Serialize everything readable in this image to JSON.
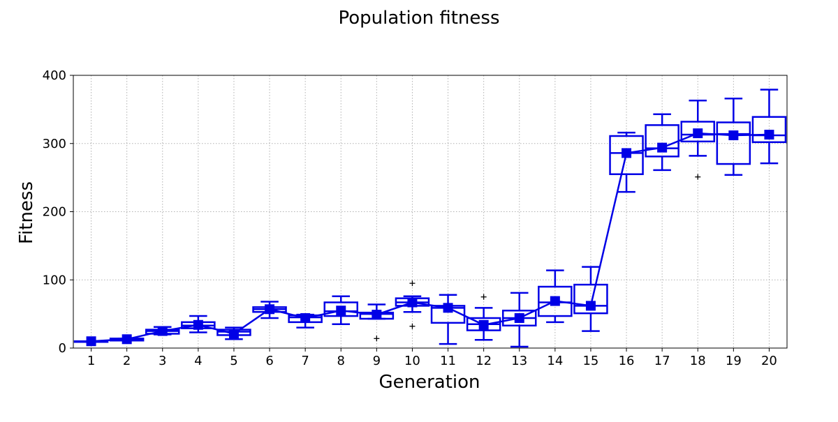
{
  "chart_data": {
    "type": "box",
    "title": "Population fitness",
    "xlabel": "Generation",
    "ylabel": "Fitness",
    "ylim": [
      0,
      400
    ],
    "yticks": [
      0,
      100,
      200,
      300,
      400
    ],
    "grid": true,
    "categories": [
      "1",
      "2",
      "3",
      "4",
      "5",
      "6",
      "7",
      "8",
      "9",
      "10",
      "11",
      "12",
      "13",
      "14",
      "15",
      "16",
      "17",
      "18",
      "19",
      "20"
    ],
    "color": "#0000e6",
    "boxes": [
      {
        "q1": 9,
        "median": 10,
        "q3": 10,
        "wlo": 9,
        "whi": 10,
        "mean": 10,
        "fliers": []
      },
      {
        "q1": 11,
        "median": 12,
        "q3": 14,
        "wlo": 11,
        "whi": 14,
        "mean": 13,
        "fliers": []
      },
      {
        "q1": 21,
        "median": 25,
        "q3": 27,
        "wlo": 20,
        "whi": 31,
        "mean": 25,
        "fliers": []
      },
      {
        "q1": 29,
        "median": 33,
        "q3": 38,
        "wlo": 23,
        "whi": 47,
        "mean": 34,
        "fliers": []
      },
      {
        "q1": 19,
        "median": 24,
        "q3": 27,
        "wlo": 13,
        "whi": 30,
        "mean": 21,
        "fliers": []
      },
      {
        "q1": 53,
        "median": 57,
        "q3": 60,
        "wlo": 44,
        "whi": 68,
        "mean": 57,
        "fliers": []
      },
      {
        "q1": 38,
        "median": 45,
        "q3": 48,
        "wlo": 30,
        "whi": 49,
        "mean": 44,
        "fliers": []
      },
      {
        "q1": 47,
        "median": 54,
        "q3": 67,
        "wlo": 35,
        "whi": 76,
        "mean": 55,
        "fliers": []
      },
      {
        "q1": 43,
        "median": 50,
        "q3": 52,
        "wlo": 43,
        "whi": 64,
        "mean": 49,
        "fliers": [
          14
        ]
      },
      {
        "q1": 62,
        "median": 67,
        "q3": 73,
        "wlo": 53,
        "whi": 76,
        "mean": 67,
        "fliers": [
          32,
          95
        ]
      },
      {
        "q1": 37,
        "median": 59,
        "q3": 62,
        "wlo": 6,
        "whi": 78,
        "mean": 59,
        "fliers": []
      },
      {
        "q1": 26,
        "median": 35,
        "q3": 44,
        "wlo": 12,
        "whi": 59,
        "mean": 34,
        "fliers": [
          75
        ]
      },
      {
        "q1": 33,
        "median": 44,
        "q3": 55,
        "wlo": 2,
        "whi": 81,
        "mean": 44,
        "fliers": []
      },
      {
        "q1": 47,
        "median": 67,
        "q3": 90,
        "wlo": 38,
        "whi": 114,
        "mean": 69,
        "fliers": []
      },
      {
        "q1": 51,
        "median": 62,
        "q3": 93,
        "wlo": 25,
        "whi": 119,
        "mean": 62,
        "fliers": []
      },
      {
        "q1": 255,
        "median": 286,
        "q3": 311,
        "wlo": 229,
        "whi": 316,
        "mean": 286,
        "fliers": []
      },
      {
        "q1": 281,
        "median": 293,
        "q3": 327,
        "wlo": 261,
        "whi": 343,
        "mean": 294,
        "fliers": []
      },
      {
        "q1": 303,
        "median": 313,
        "q3": 332,
        "wlo": 282,
        "whi": 363,
        "mean": 315,
        "fliers": [
          251
        ]
      },
      {
        "q1": 270,
        "median": 314,
        "q3": 331,
        "wlo": 254,
        "whi": 366,
        "mean": 312,
        "fliers": []
      },
      {
        "q1": 302,
        "median": 312,
        "q3": 339,
        "wlo": 271,
        "whi": 379,
        "mean": 313,
        "fliers": []
      }
    ]
  }
}
